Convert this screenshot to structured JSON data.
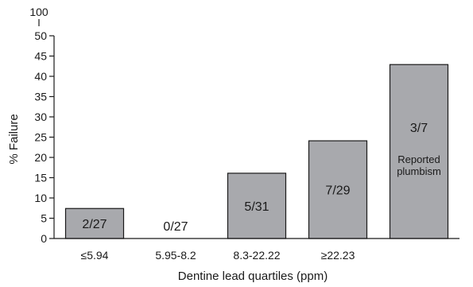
{
  "chart_data": {
    "type": "bar",
    "title": "",
    "xlabel": "Dentine lead quartiles (ppm)",
    "ylabel": "% Failure",
    "categories": [
      "≤5.94",
      "5.95-8.2",
      "8.3-22.22",
      "≥22.23",
      ""
    ],
    "values": [
      7.4,
      0,
      16.1,
      24.1,
      42.9
    ],
    "data_labels": [
      "2/27",
      "0/27",
      "5/31",
      "7/29",
      "3/7"
    ],
    "annotations": [
      {
        "category_index": 4,
        "lines": [
          "Reported",
          "plumbism"
        ]
      }
    ],
    "y_ticks": [
      0,
      5,
      10,
      15,
      20,
      25,
      30,
      35,
      40,
      45,
      50
    ],
    "y_break_label": "100",
    "ylim": [
      0,
      50
    ],
    "axis_break": true,
    "grid": false,
    "legend": "none",
    "colors": {
      "bar_fill": "#a8a9ad",
      "stroke": "#1a1a1a"
    }
  }
}
